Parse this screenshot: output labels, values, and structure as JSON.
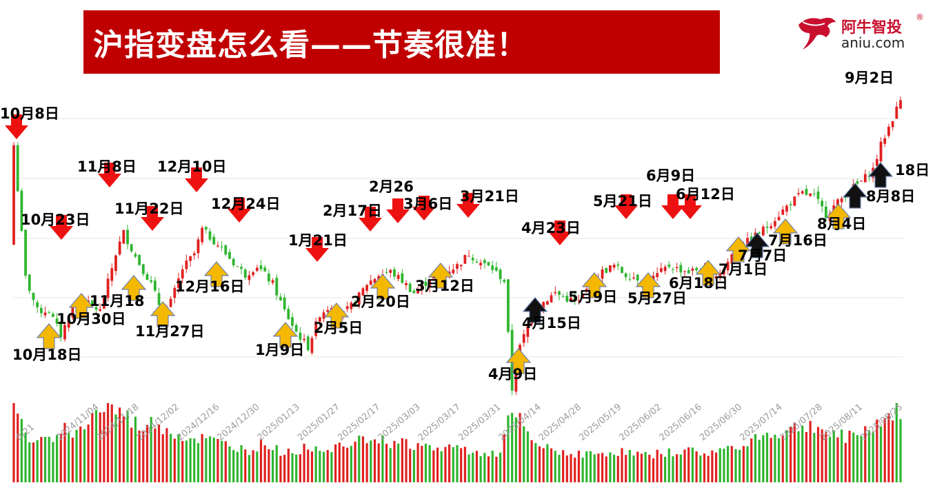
{
  "title": "沪指变盘怎么看——节奏很准！",
  "logo": {
    "name_cn": "阿牛智投",
    "registered": "®",
    "domain": "aniu.com"
  },
  "colors": {
    "up": "#e02020",
    "down": "#2fb52f",
    "title_bg": "#c00000",
    "arrow_red": "#ee1111",
    "arrow_gold": "#f5b800",
    "arrow_black": "#111111"
  },
  "chart_data": {
    "type": "candlestick",
    "x_ticks": [
      "0/21",
      "2024/11/04",
      "2024/11/18",
      "2024/12/02",
      "2024/12/16",
      "2024/12/30",
      "2025/01/13",
      "2025/01/27",
      "2025/02/17",
      "2025/03/03",
      "2025/03/17",
      "2025/03/31",
      "2025/04/14",
      "2025/04/28",
      "2025/05/19",
      "2025/06/02",
      "2025/06/16",
      "2025/06/30",
      "2025/07/14",
      "2025/07/28",
      "2025/08/11",
      "2025/08/25"
    ],
    "ylim": [
      2.0,
      10.0
    ],
    "close_path": [
      [
        0,
        8.5
      ],
      [
        3,
        4.1
      ],
      [
        6,
        3.0
      ],
      [
        9,
        3.0
      ],
      [
        12,
        2.2
      ],
      [
        15,
        3.1
      ],
      [
        18,
        3.3
      ],
      [
        22,
        3.0
      ],
      [
        26,
        4.9
      ],
      [
        28,
        5.6
      ],
      [
        31,
        4.8
      ],
      [
        35,
        3.9
      ],
      [
        38,
        2.9
      ],
      [
        40,
        3.3
      ],
      [
        43,
        4.4
      ],
      [
        46,
        4.9
      ],
      [
        48,
        5.7
      ],
      [
        52,
        5.2
      ],
      [
        56,
        4.6
      ],
      [
        59,
        4.2
      ],
      [
        62,
        4.5
      ],
      [
        66,
        3.9
      ],
      [
        69,
        3.0
      ],
      [
        72,
        2.3
      ],
      [
        75,
        1.8
      ],
      [
        78,
        2.9
      ],
      [
        81,
        3.2
      ],
      [
        84,
        2.9
      ],
      [
        87,
        3.3
      ],
      [
        90,
        3.9
      ],
      [
        93,
        4.2
      ],
      [
        96,
        4.3
      ],
      [
        99,
        4.0
      ],
      [
        102,
        3.6
      ],
      [
        104,
        3.8
      ],
      [
        107,
        4.2
      ],
      [
        110,
        4.3
      ],
      [
        113,
        4.5
      ],
      [
        116,
        4.9
      ],
      [
        119,
        4.6
      ],
      [
        122,
        4.4
      ],
      [
        125,
        4.0
      ],
      [
        127,
        0.4
      ],
      [
        129,
        1.8
      ],
      [
        132,
        2.9
      ],
      [
        135,
        3.3
      ],
      [
        138,
        3.6
      ],
      [
        141,
        3.4
      ],
      [
        144,
        3.3
      ],
      [
        147,
        3.9
      ],
      [
        150,
        4.3
      ],
      [
        153,
        4.5
      ],
      [
        156,
        4.2
      ],
      [
        159,
        4.1
      ],
      [
        161,
        3.9
      ],
      [
        164,
        4.2
      ],
      [
        167,
        4.5
      ],
      [
        169,
        4.4
      ],
      [
        172,
        4.3
      ],
      [
        175,
        4.4
      ],
      [
        178,
        4.1
      ],
      [
        181,
        4.4
      ],
      [
        184,
        5.1
      ],
      [
        187,
        5.3
      ],
      [
        189,
        5.5
      ],
      [
        192,
        5.8
      ],
      [
        195,
        6.2
      ],
      [
        198,
        6.6
      ],
      [
        201,
        6.9
      ],
      [
        204,
        6.8
      ],
      [
        207,
        6.2
      ],
      [
        210,
        6.6
      ],
      [
        213,
        7.0
      ],
      [
        216,
        7.3
      ],
      [
        219,
        7.7
      ],
      [
        221,
        8.5
      ],
      [
        224,
        9.4
      ],
      [
        226,
        10.0
      ]
    ],
    "volume_path": [
      [
        0,
        0.92
      ],
      [
        4,
        0.55
      ],
      [
        8,
        0.5
      ],
      [
        12,
        0.7
      ],
      [
        16,
        0.6
      ],
      [
        20,
        0.85
      ],
      [
        24,
        0.95
      ],
      [
        28,
        0.85
      ],
      [
        32,
        0.7
      ],
      [
        36,
        0.75
      ],
      [
        40,
        0.65
      ],
      [
        44,
        0.55
      ],
      [
        48,
        0.55
      ],
      [
        52,
        0.5
      ],
      [
        56,
        0.45
      ],
      [
        60,
        0.4
      ],
      [
        64,
        0.5
      ],
      [
        68,
        0.38
      ],
      [
        72,
        0.4
      ],
      [
        76,
        0.45
      ],
      [
        80,
        0.42
      ],
      [
        84,
        0.48
      ],
      [
        88,
        0.6
      ],
      [
        92,
        0.55
      ],
      [
        96,
        0.5
      ],
      [
        100,
        0.5
      ],
      [
        104,
        0.45
      ],
      [
        108,
        0.42
      ],
      [
        112,
        0.45
      ],
      [
        116,
        0.4
      ],
      [
        120,
        0.38
      ],
      [
        124,
        0.35
      ],
      [
        126,
        0.75
      ],
      [
        128,
        0.85
      ],
      [
        132,
        0.5
      ],
      [
        136,
        0.42
      ],
      [
        140,
        0.38
      ],
      [
        144,
        0.36
      ],
      [
        148,
        0.35
      ],
      [
        152,
        0.38
      ],
      [
        156,
        0.38
      ],
      [
        160,
        0.34
      ],
      [
        164,
        0.36
      ],
      [
        168,
        0.38
      ],
      [
        172,
        0.4
      ],
      [
        176,
        0.36
      ],
      [
        180,
        0.4
      ],
      [
        184,
        0.45
      ],
      [
        188,
        0.55
      ],
      [
        192,
        0.6
      ],
      [
        196,
        0.62
      ],
      [
        200,
        0.7
      ],
      [
        204,
        0.72
      ],
      [
        208,
        0.6
      ],
      [
        212,
        0.58
      ],
      [
        216,
        0.62
      ],
      [
        220,
        0.75
      ],
      [
        224,
        0.85
      ],
      [
        226,
        0.9
      ]
    ],
    "annotations": [
      {
        "text": "10月8日",
        "dir": "down",
        "color": "red",
        "idx": 0
      },
      {
        "text": "10月23日",
        "dir": "down",
        "color": "red",
        "idx": 11
      },
      {
        "text": "11月8日",
        "dir": "down",
        "color": "red",
        "idx": 23
      },
      {
        "text": "11月22日",
        "dir": "down",
        "color": "red",
        "idx": 33
      },
      {
        "text": "12月10日",
        "dir": "down",
        "color": "red",
        "idx": 45
      },
      {
        "text": "12月24日",
        "dir": "down",
        "color": "red",
        "idx": 55
      },
      {
        "text": "1月21日",
        "dir": "down",
        "color": "red",
        "idx": 75
      },
      {
        "text": "2月17日",
        "dir": "down",
        "color": "red",
        "idx": 88
      },
      {
        "text": "2月26",
        "dir": "down",
        "color": "red",
        "idx": 94
      },
      {
        "text": "3月6日",
        "dir": "down",
        "color": "red",
        "idx": 100
      },
      {
        "text": "3月21日",
        "dir": "down",
        "color": "red",
        "idx": 111
      },
      {
        "text": "4月23日",
        "dir": "down",
        "color": "red",
        "idx": 133
      },
      {
        "text": "5月21日",
        "dir": "down",
        "color": "red",
        "idx": 150
      },
      {
        "text": "6月9日",
        "dir": "down",
        "color": "red",
        "idx": 160
      },
      {
        "text": "6月12日",
        "dir": "down",
        "color": "red",
        "idx": 165
      },
      {
        "text": "10月18日",
        "dir": "up",
        "color": "gold",
        "idx": 9
      },
      {
        "text": "10月30日",
        "dir": "up",
        "color": "gold",
        "idx": 16
      },
      {
        "text": "11月18",
        "dir": "up",
        "color": "gold",
        "idx": 28
      },
      {
        "text": "11月27日",
        "dir": "up",
        "color": "gold",
        "idx": 35
      },
      {
        "text": "12月16日",
        "dir": "up",
        "color": "gold",
        "idx": 49
      },
      {
        "text": "1月9日",
        "dir": "up",
        "color": "gold",
        "idx": 67
      },
      {
        "text": "2月5日",
        "dir": "up",
        "color": "gold",
        "idx": 78
      },
      {
        "text": "2月20日",
        "dir": "up",
        "color": "gold",
        "idx": 89
      },
      {
        "text": "3月12日",
        "dir": "up",
        "color": "gold",
        "idx": 103
      },
      {
        "text": "4月9日",
        "dir": "up",
        "color": "gold",
        "idx": 123
      },
      {
        "text": "4月15日",
        "dir": "up",
        "color": "black",
        "idx": 127
      },
      {
        "text": "5月9日",
        "dir": "up",
        "color": "gold",
        "idx": 141
      },
      {
        "text": "5月27日",
        "dir": "up",
        "color": "gold",
        "idx": 154
      },
      {
        "text": "6月18日",
        "dir": "up",
        "color": "gold",
        "idx": 170
      },
      {
        "text": "7月1日",
        "dir": "up",
        "color": "gold",
        "idx": 178
      },
      {
        "text": "7月7日",
        "dir": "up",
        "color": "black",
        "idx": 182
      },
      {
        "text": "7月16日",
        "dir": "up",
        "color": "gold",
        "idx": 189
      },
      {
        "text": "8月4日",
        "dir": "up",
        "color": "gold",
        "idx": 203
      },
      {
        "text": "8月8日",
        "dir": "up",
        "color": "black",
        "idx": 207
      },
      {
        "text": "18日",
        "dir": "up",
        "color": "black",
        "idx": 213
      },
      {
        "text": "9月2日",
        "dir": "none",
        "color": "none",
        "idx": 226
      }
    ]
  }
}
